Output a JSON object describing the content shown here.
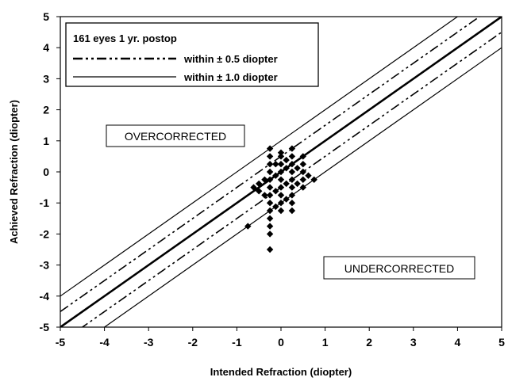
{
  "chart_data": {
    "type": "scatter",
    "xlabel": "Intended Refraction (diopter)",
    "ylabel": "Achieved Refraction (diopter)",
    "xlim": [
      -5,
      5
    ],
    "ylim": [
      -5,
      5
    ],
    "xticks": [
      "-5",
      "-4",
      "-3",
      "-2",
      "-1",
      "0",
      "1",
      "2",
      "3",
      "4",
      "5"
    ],
    "yticks": [
      "5",
      "4",
      "3",
      "2",
      "1",
      "0",
      "-1",
      "-2",
      "-3",
      "-4",
      "-5"
    ],
    "grid": false,
    "legend": {
      "placement": "top-left",
      "title": "161 eyes 1 yr. postop",
      "entries": [
        {
          "label": "within ± 0.5 diopter",
          "style": "dash-dot-dot"
        },
        {
          "label": "within ± 1.0 diopter",
          "style": "solid"
        }
      ]
    },
    "annotations": {
      "over": "OVERCORRECTED",
      "under": "UNDERCORRECTED"
    },
    "reference_lines": [
      {
        "offset": 0,
        "style": "solid-thick"
      },
      {
        "offset": 0.5,
        "style": "dash-dot-dot"
      },
      {
        "offset": -0.5,
        "style": "dash-dot-dot"
      },
      {
        "offset": 1.0,
        "style": "solid"
      },
      {
        "offset": -1.0,
        "style": "solid"
      }
    ],
    "points": [
      {
        "x": -0.75,
        "y": -1.75
      },
      {
        "x": -0.62,
        "y": -0.5
      },
      {
        "x": -0.5,
        "y": -0.38
      },
      {
        "x": -0.5,
        "y": -0.62
      },
      {
        "x": -0.37,
        "y": -0.25
      },
      {
        "x": -0.37,
        "y": -0.75
      },
      {
        "x": -0.25,
        "y": 0.75
      },
      {
        "x": -0.25,
        "y": 0.5
      },
      {
        "x": -0.25,
        "y": 0.25
      },
      {
        "x": -0.25,
        "y": 0.0
      },
      {
        "x": -0.25,
        "y": -0.25
      },
      {
        "x": -0.25,
        "y": -0.5
      },
      {
        "x": -0.25,
        "y": -0.75
      },
      {
        "x": -0.25,
        "y": -1.0
      },
      {
        "x": -0.25,
        "y": -1.25
      },
      {
        "x": -0.25,
        "y": -1.5
      },
      {
        "x": -0.25,
        "y": -1.75
      },
      {
        "x": -0.25,
        "y": -2.0
      },
      {
        "x": -0.25,
        "y": -2.5
      },
      {
        "x": -0.12,
        "y": 0.25
      },
      {
        "x": -0.12,
        "y": -0.12
      },
      {
        "x": -0.12,
        "y": -0.62
      },
      {
        "x": -0.12,
        "y": -1.12
      },
      {
        "x": 0.0,
        "y": 0.62
      },
      {
        "x": 0.0,
        "y": 0.5
      },
      {
        "x": 0.0,
        "y": 0.25
      },
      {
        "x": 0.0,
        "y": 0.0
      },
      {
        "x": 0.0,
        "y": -0.25
      },
      {
        "x": 0.0,
        "y": -0.5
      },
      {
        "x": 0.0,
        "y": -0.75
      },
      {
        "x": 0.0,
        "y": -1.0
      },
      {
        "x": 0.0,
        "y": -1.25
      },
      {
        "x": 0.12,
        "y": 0.38
      },
      {
        "x": 0.12,
        "y": 0.12
      },
      {
        "x": 0.12,
        "y": -0.38
      },
      {
        "x": 0.12,
        "y": -0.88
      },
      {
        "x": 0.25,
        "y": 0.75
      },
      {
        "x": 0.25,
        "y": 0.5
      },
      {
        "x": 0.25,
        "y": 0.25
      },
      {
        "x": 0.25,
        "y": 0.0
      },
      {
        "x": 0.25,
        "y": -0.25
      },
      {
        "x": 0.25,
        "y": -0.5
      },
      {
        "x": 0.25,
        "y": -0.75
      },
      {
        "x": 0.25,
        "y": -1.0
      },
      {
        "x": 0.25,
        "y": -1.25
      },
      {
        "x": 0.37,
        "y": 0.12
      },
      {
        "x": 0.37,
        "y": -0.38
      },
      {
        "x": 0.5,
        "y": 0.5
      },
      {
        "x": 0.5,
        "y": 0.25
      },
      {
        "x": 0.5,
        "y": 0.0
      },
      {
        "x": 0.5,
        "y": -0.25
      },
      {
        "x": 0.5,
        "y": -0.5
      },
      {
        "x": 0.62,
        "y": -0.12
      },
      {
        "x": 0.75,
        "y": -0.25
      }
    ]
  }
}
